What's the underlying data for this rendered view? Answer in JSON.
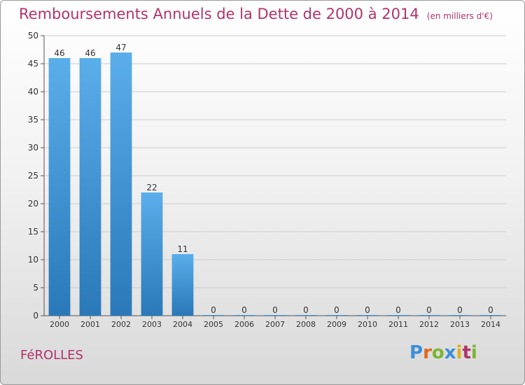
{
  "title": "Remboursements Annuels de la Dette de 2000 à 2014",
  "unit": "(en milliers d'€)",
  "commune": "FéROLLES",
  "logo": {
    "text": "Proxiti",
    "letters": [
      {
        "ch": "P",
        "color": "#3a8fd8"
      },
      {
        "ch": "r",
        "color": "#e06a1b"
      },
      {
        "ch": "o",
        "color": "#7cb531"
      },
      {
        "ch": "x",
        "color": "#3a8fd8"
      },
      {
        "ch": "i",
        "color": "#e0b11b"
      },
      {
        "ch": "t",
        "color": "#b1336b"
      },
      {
        "ch": "i",
        "color": "#7cb531"
      }
    ]
  },
  "colors": {
    "title": "#b1336b",
    "bar_top": "#5aaeea",
    "bar_bottom": "#2a78b8",
    "axis": "#555555",
    "grid": "#cccccc"
  },
  "chart_data": {
    "type": "bar",
    "categories": [
      "2000",
      "2001",
      "2002",
      "2003",
      "2004",
      "2005",
      "2006",
      "2007",
      "2008",
      "2009",
      "2010",
      "2011",
      "2012",
      "2013",
      "2014"
    ],
    "values": [
      46,
      46,
      47,
      22,
      11,
      0,
      0,
      0,
      0,
      0,
      0,
      0,
      0,
      0,
      0
    ],
    "ylim": [
      0,
      50
    ],
    "yticks": [
      0,
      5,
      10,
      15,
      20,
      25,
      30,
      35,
      40,
      45,
      50
    ],
    "grid": true,
    "data_labels": true
  }
}
